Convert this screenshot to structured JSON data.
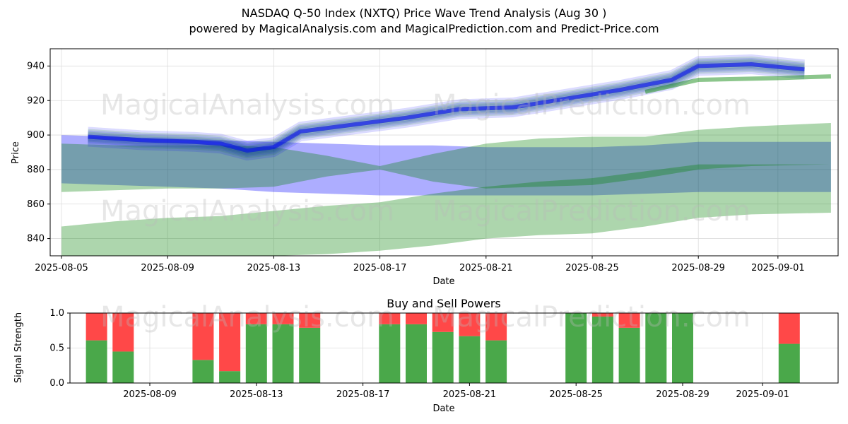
{
  "title_line1": "NASDAQ Q-50 Index (NXTQ) Price Wave Trend Analysis (Aug 30 )",
  "title_line2": "powered by MagicalAnalysis.com and MagicalPrediction.com and Predict-Price.com",
  "watermarks": [
    "MagicalAnalysis.com",
    "MagicalPrediction.com"
  ],
  "colors": {
    "blue": "#0000ff",
    "green": "#008000",
    "buy": "#4aa84a",
    "sell": "#ff4848",
    "grid": "#dddddd"
  },
  "chart_data": [
    {
      "type": "area",
      "title": "",
      "xlabel": "Date",
      "ylabel": "Price",
      "ylim": [
        830,
        950
      ],
      "xticks": [
        "2025-08-05",
        "2025-08-09",
        "2025-08-13",
        "2025-08-17",
        "2025-08-21",
        "2025-08-25",
        "2025-08-29",
        "2025-09-01"
      ],
      "yticks": [
        840,
        860,
        880,
        900,
        920,
        940
      ],
      "x": [
        "2025-08-05",
        "2025-08-07",
        "2025-08-09",
        "2025-08-11",
        "2025-08-13",
        "2025-08-15",
        "2025-08-17",
        "2025-08-19",
        "2025-08-21",
        "2025-08-23",
        "2025-08-25",
        "2025-08-27",
        "2025-08-29",
        "2025-08-31",
        "2025-09-03"
      ],
      "series": [
        {
          "name": "Blue band (wide)",
          "upper": [
            900,
            899,
            898,
            897,
            896,
            895,
            894,
            894,
            893,
            893,
            893,
            894,
            896,
            896,
            896
          ],
          "lower": [
            872,
            871,
            870,
            869,
            867,
            866,
            865,
            865,
            865,
            865,
            865,
            866,
            867,
            867,
            867
          ]
        },
        {
          "name": "Green band (inner)",
          "upper": [
            895,
            894,
            894,
            894,
            893,
            888,
            882,
            889,
            895,
            898,
            899,
            899,
            903,
            905,
            907
          ],
          "lower": [
            867,
            868,
            869,
            869,
            870,
            876,
            880,
            873,
            869,
            870,
            871,
            875,
            880,
            882,
            883
          ]
        },
        {
          "name": "Green band (lower)",
          "upper": [
            847,
            850,
            852,
            853,
            856,
            859,
            861,
            866,
            870,
            873,
            875,
            879,
            883,
            883,
            883
          ],
          "lower": [
            830,
            830,
            830,
            830,
            830,
            831,
            833,
            836,
            840,
            842,
            843,
            847,
            852,
            854,
            855
          ]
        },
        {
          "name": "Price wave (recent path)",
          "x": [
            "2025-08-06",
            "2025-08-08",
            "2025-08-10",
            "2025-08-11",
            "2025-08-12",
            "2025-08-13",
            "2025-08-14",
            "2025-08-16",
            "2025-08-18",
            "2025-08-20",
            "2025-08-22",
            "2025-08-24",
            "2025-08-26",
            "2025-08-28",
            "2025-08-29",
            "2025-08-31",
            "2025-09-02"
          ],
          "values": [
            899,
            897,
            896,
            895,
            891,
            893,
            902,
            906,
            910,
            915,
            916,
            921,
            926,
            932,
            940,
            941,
            938
          ]
        },
        {
          "name": "Trend projection (green)",
          "x": [
            "2025-08-27",
            "2025-08-29",
            "2025-09-01",
            "2025-09-03"
          ],
          "values": [
            925,
            932,
            933,
            934
          ]
        }
      ]
    },
    {
      "type": "bar",
      "title": "Buy and Sell Powers",
      "xlabel": "Date",
      "ylabel": "Signal Strength",
      "ylim": [
        0,
        1
      ],
      "yticks": [
        "0.0",
        "0.5",
        "1.0"
      ],
      "xticks": [
        "2025-08-09",
        "2025-08-13",
        "2025-08-17",
        "2025-08-21",
        "2025-08-25",
        "2025-08-29",
        "2025-09-01"
      ],
      "categories": [
        "2025-08-07",
        "2025-08-08",
        "2025-08-11",
        "2025-08-12",
        "2025-08-13",
        "2025-08-14",
        "2025-08-15",
        "2025-08-18",
        "2025-08-19",
        "2025-08-20",
        "2025-08-21",
        "2025-08-22",
        "2025-08-25",
        "2025-08-26",
        "2025-08-27",
        "2025-08-28",
        "2025-08-29",
        "2025-09-02"
      ],
      "series": [
        {
          "name": "Buy",
          "values": [
            0.61,
            0.45,
            0.33,
            0.17,
            0.84,
            0.84,
            0.79,
            0.84,
            0.84,
            0.73,
            0.67,
            0.61,
            1.0,
            0.95,
            0.79,
            1.0,
            1.0,
            0.56
          ]
        },
        {
          "name": "Sell",
          "values": [
            0.39,
            0.55,
            0.67,
            0.83,
            0.16,
            0.16,
            0.21,
            0.16,
            0.16,
            0.27,
            0.33,
            0.39,
            0.0,
            0.05,
            0.21,
            0.0,
            0.0,
            0.44
          ]
        }
      ]
    }
  ]
}
